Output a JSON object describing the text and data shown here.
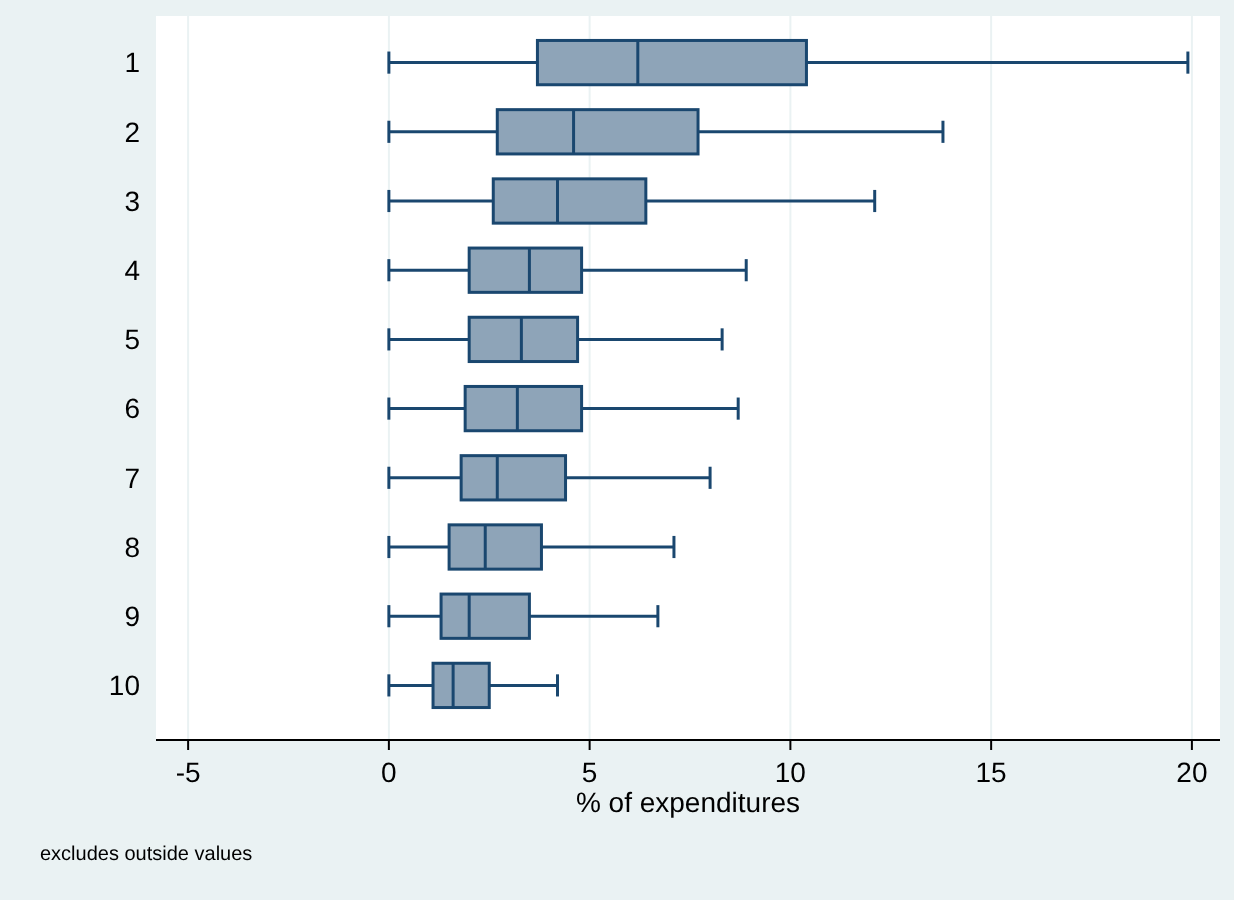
{
  "chart_data": {
    "type": "box",
    "orientation": "horizontal",
    "xlabel": "% of expenditures",
    "categories": [
      "1",
      "2",
      "3",
      "4",
      "5",
      "6",
      "7",
      "8",
      "9",
      "10"
    ],
    "color": "#8ea4b8",
    "xlim": [
      -5.8,
      20.7
    ],
    "xticks": [
      -5,
      0,
      5,
      10,
      15,
      20
    ],
    "grid": "x",
    "annotations": [
      "excludes outside values"
    ],
    "boxes": [
      {
        "low": 0,
        "q1": 3.7,
        "median": 6.2,
        "q3": 10.4,
        "high": 19.9
      },
      {
        "low": 0,
        "q1": 2.7,
        "median": 4.6,
        "q3": 7.7,
        "high": 13.8
      },
      {
        "low": 0,
        "q1": 2.6,
        "median": 4.2,
        "q3": 6.4,
        "high": 12.1
      },
      {
        "low": 0,
        "q1": 2.0,
        "median": 3.5,
        "q3": 4.8,
        "high": 8.9
      },
      {
        "low": 0,
        "q1": 2.0,
        "median": 3.3,
        "q3": 4.7,
        "high": 8.3
      },
      {
        "low": 0,
        "q1": 1.9,
        "median": 3.2,
        "q3": 4.8,
        "high": 8.7
      },
      {
        "low": 0,
        "q1": 1.8,
        "median": 2.7,
        "q3": 4.4,
        "high": 8.0
      },
      {
        "low": 0,
        "q1": 1.5,
        "median": 2.4,
        "q3": 3.8,
        "high": 7.1
      },
      {
        "low": 0,
        "q1": 1.3,
        "median": 2.0,
        "q3": 3.5,
        "high": 6.7
      },
      {
        "low": 0,
        "q1": 1.1,
        "median": 1.6,
        "q3": 2.5,
        "high": 4.2
      }
    ]
  }
}
